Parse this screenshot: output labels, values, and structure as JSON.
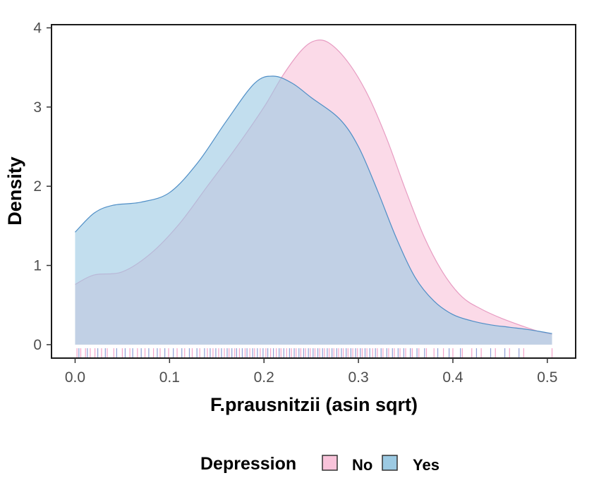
{
  "chart_data": {
    "type": "area",
    "title": "",
    "xlabel": "F.prausnitzii (asin sqrt)",
    "ylabel": "Density",
    "xlim": [
      -0.025,
      0.53
    ],
    "ylim": [
      -0.17,
      4.04
    ],
    "x_ticks": [
      0.0,
      0.1,
      0.2,
      0.3,
      0.4,
      0.5
    ],
    "x_tick_labels": [
      "0.0",
      "0.1",
      "0.2",
      "0.3",
      "0.4",
      "0.5"
    ],
    "y_ticks": [
      0,
      1,
      2,
      3,
      4
    ],
    "y_tick_labels": [
      "0",
      "1",
      "2",
      "3",
      "4"
    ],
    "grid": false,
    "legend": {
      "title": "Depression",
      "placement": "bottom",
      "entries": [
        {
          "label": "No",
          "fill": "#f9c3da",
          "stroke": "#ee9cc4"
        },
        {
          "label": "Yes",
          "fill": "#9ccae3",
          "stroke": "#4f8ec6"
        }
      ]
    },
    "series": [
      {
        "name": "No",
        "fill": "#f9c3da",
        "stroke": "#e79cc2",
        "opacity": 0.62,
        "points": [
          [
            0.0,
            0.76
          ],
          [
            0.02,
            0.88
          ],
          [
            0.05,
            0.92
          ],
          [
            0.08,
            1.15
          ],
          [
            0.11,
            1.52
          ],
          [
            0.14,
            2.0
          ],
          [
            0.17,
            2.48
          ],
          [
            0.2,
            3.0
          ],
          [
            0.22,
            3.4
          ],
          [
            0.24,
            3.72
          ],
          [
            0.255,
            3.84
          ],
          [
            0.27,
            3.8
          ],
          [
            0.29,
            3.55
          ],
          [
            0.31,
            3.15
          ],
          [
            0.33,
            2.6
          ],
          [
            0.35,
            1.95
          ],
          [
            0.37,
            1.35
          ],
          [
            0.39,
            0.9
          ],
          [
            0.41,
            0.6
          ],
          [
            0.43,
            0.45
          ],
          [
            0.45,
            0.34
          ],
          [
            0.47,
            0.25
          ],
          [
            0.49,
            0.17
          ],
          [
            0.505,
            0.13
          ]
        ]
      },
      {
        "name": "Yes",
        "fill": "#9ccae3",
        "stroke": "#4f8ec6",
        "opacity": 0.62,
        "points": [
          [
            0.0,
            1.42
          ],
          [
            0.02,
            1.66
          ],
          [
            0.04,
            1.76
          ],
          [
            0.07,
            1.8
          ],
          [
            0.1,
            1.92
          ],
          [
            0.13,
            2.3
          ],
          [
            0.16,
            2.82
          ],
          [
            0.19,
            3.3
          ],
          [
            0.21,
            3.39
          ],
          [
            0.23,
            3.3
          ],
          [
            0.25,
            3.12
          ],
          [
            0.28,
            2.85
          ],
          [
            0.3,
            2.5
          ],
          [
            0.32,
            1.95
          ],
          [
            0.34,
            1.35
          ],
          [
            0.36,
            0.85
          ],
          [
            0.38,
            0.55
          ],
          [
            0.4,
            0.38
          ],
          [
            0.42,
            0.3
          ],
          [
            0.44,
            0.25
          ],
          [
            0.46,
            0.22
          ],
          [
            0.48,
            0.19
          ],
          [
            0.505,
            0.14
          ]
        ]
      }
    ],
    "rug": {
      "No": [
        0.002,
        0.006,
        0.011,
        0.016,
        0.021,
        0.028,
        0.034,
        0.041,
        0.05,
        0.058,
        0.066,
        0.074,
        0.083,
        0.09,
        0.099,
        0.108,
        0.116,
        0.124,
        0.132,
        0.14,
        0.146,
        0.152,
        0.158,
        0.163,
        0.169,
        0.174,
        0.18,
        0.185,
        0.19,
        0.196,
        0.202,
        0.207,
        0.213,
        0.218,
        0.224,
        0.229,
        0.234,
        0.239,
        0.244,
        0.249,
        0.254,
        0.259,
        0.264,
        0.269,
        0.274,
        0.279,
        0.284,
        0.289,
        0.294,
        0.299,
        0.304,
        0.309,
        0.315,
        0.32,
        0.326,
        0.332,
        0.338,
        0.344,
        0.35,
        0.357,
        0.364,
        0.372,
        0.38,
        0.39,
        0.4,
        0.41,
        0.42,
        0.43,
        0.445,
        0.46,
        0.475,
        0.505
      ],
      "Yes": [
        0.004,
        0.013,
        0.024,
        0.032,
        0.044,
        0.053,
        0.061,
        0.07,
        0.078,
        0.087,
        0.095,
        0.104,
        0.113,
        0.121,
        0.129,
        0.137,
        0.143,
        0.149,
        0.155,
        0.161,
        0.166,
        0.171,
        0.177,
        0.182,
        0.188,
        0.193,
        0.199,
        0.204,
        0.21,
        0.216,
        0.221,
        0.227,
        0.232,
        0.237,
        0.242,
        0.247,
        0.252,
        0.257,
        0.262,
        0.267,
        0.272,
        0.277,
        0.282,
        0.287,
        0.292,
        0.297,
        0.302,
        0.307,
        0.312,
        0.318,
        0.324,
        0.33,
        0.336,
        0.342,
        0.348,
        0.355,
        0.362,
        0.37,
        0.384,
        0.396,
        0.408,
        0.425,
        0.44,
        0.455,
        0.47
      ]
    }
  }
}
